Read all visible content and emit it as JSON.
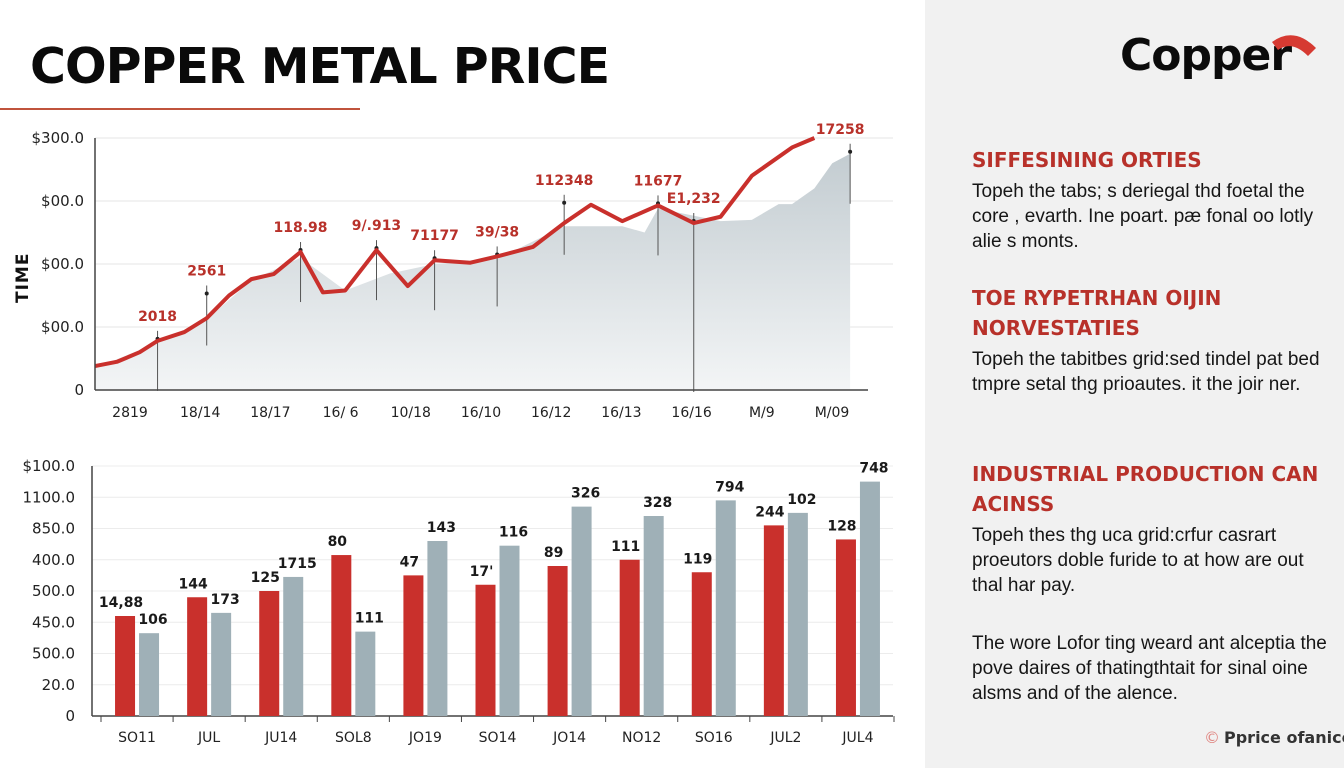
{
  "header": {
    "title": "COPPER METAL PRICE",
    "y_axis_side_label": "TIME"
  },
  "brand": {
    "logo_text": "Copper",
    "logo_icon": "copper-arc-icon",
    "accent_color": "#c9302c",
    "secondary_color": "#9fb0b7"
  },
  "sidebar": {
    "sections": [
      {
        "heading": "SIFFESINING ORTIES",
        "body": "Topeh the tabs; s deriegal thd foetal the core , evarth. Ine poart. pæ fonal oo lotly alie s monts."
      },
      {
        "heading": "TOE RYPETRHAN OIJIN NORVESTATIES",
        "body": "Topeh the tabitbes grid:sed tindel pat bed tmpre setal thg prioautes. it the joir ner."
      },
      {
        "heading": "INDUSTRIAL PRODUCTION CAN ACINSS",
        "body": "Topeh thes thg uca grid:crfur casrart proeutors doble furide to at how are out thal har pay."
      },
      {
        "heading": "",
        "body": "The wore Lofor ting weard ant alceptia the pove daires of thatingthtait for sinal oine alsms and of the alence."
      }
    ],
    "footer": {
      "icon": "copyright-icon",
      "symbol": "©",
      "text": "Pprice ofanice"
    }
  },
  "chart_data": [
    {
      "type": "area",
      "title": "COPPER METAL PRICE",
      "xlabel": "",
      "ylabel": "TIME",
      "y_tick_labels": [
        "0",
        "$00.0",
        "$00.0",
        "$00.0",
        "$300.0"
      ],
      "ylim": [
        0,
        4
      ],
      "grid": true,
      "x_tick_labels": [
        "2819",
        "18/14",
        "18/17",
        "16/ 6",
        "10/18",
        "16/10",
        "16/12",
        "16/13",
        "16/16",
        "M/9",
        "M/09"
      ],
      "series": [
        {
          "name": "price-line",
          "color": "#c9302c",
          "points": [
            [
              0,
              0.38
            ],
            [
              0.5,
              0.45
            ],
            [
              1,
              0.6
            ],
            [
              1.4,
              0.78
            ],
            [
              2,
              0.92
            ],
            [
              2.5,
              1.14
            ],
            [
              3,
              1.5
            ],
            [
              3.5,
              1.76
            ],
            [
              4,
              1.84
            ],
            [
              4.6,
              2.19
            ],
            [
              5.1,
              1.55
            ],
            [
              5.6,
              1.58
            ],
            [
              6.3,
              2.22
            ],
            [
              7,
              1.65
            ],
            [
              7.6,
              2.06
            ],
            [
              8.4,
              2.02
            ],
            [
              9,
              2.12
            ],
            [
              9.8,
              2.27
            ],
            [
              10.5,
              2.65
            ],
            [
              11.1,
              2.94
            ],
            [
              11.8,
              2.68
            ],
            [
              12.6,
              2.93
            ],
            [
              13.4,
              2.65
            ],
            [
              14,
              2.75
            ],
            [
              14.7,
              3.4
            ],
            [
              15.6,
              3.85
            ],
            [
              16.1,
              4.0
            ]
          ]
        },
        {
          "name": "shaded-area",
          "color": "#cfd7db",
          "points": [
            [
              0,
              0.35
            ],
            [
              1.4,
              0.75
            ],
            [
              2.5,
              1.12
            ],
            [
              3.5,
              1.74
            ],
            [
              4.6,
              2.1
            ],
            [
              5.6,
              1.58
            ],
            [
              6.6,
              1.85
            ],
            [
              7.6,
              2.0
            ],
            [
              9,
              2.08
            ],
            [
              10.5,
              2.6
            ],
            [
              11.8,
              2.6
            ],
            [
              12.3,
              2.5
            ],
            [
              12.6,
              2.88
            ],
            [
              14,
              2.68
            ],
            [
              14.7,
              2.7
            ],
            [
              15.3,
              2.95
            ],
            [
              15.6,
              2.95
            ],
            [
              16.1,
              3.2
            ],
            [
              16.5,
              3.6
            ],
            [
              16.9,
              3.75
            ]
          ]
        }
      ],
      "annotations": [
        {
          "text": "2018",
          "x": 1.4,
          "y": 0.78
        },
        {
          "text": "2561",
          "x": 2.5,
          "y": 1.5
        },
        {
          "text": "118.98",
          "x": 4.6,
          "y": 2.19
        },
        {
          "text": "9/.913",
          "x": 6.3,
          "y": 2.22
        },
        {
          "text": "71177",
          "x": 7.6,
          "y": 2.06
        },
        {
          "text": "39/38",
          "x": 9.0,
          "y": 2.12
        },
        {
          "text": "112348",
          "x": 10.5,
          "y": 2.94
        },
        {
          "text": "11677",
          "x": 12.6,
          "y": 2.93
        },
        {
          "text": "E1,232",
          "x": 13.4,
          "y": 2.65
        },
        {
          "text": "17258",
          "x": 16.9,
          "y": 3.75
        }
      ]
    },
    {
      "type": "bar",
      "title": "",
      "xlabel": "",
      "ylabel": "",
      "categories": [
        "SO11",
        "JUL",
        "JU14",
        "SOL8",
        "JO19",
        "SO14",
        "JO14",
        "NO12",
        "SO16",
        "JUL2",
        "JUL4"
      ],
      "y_tick_labels": [
        "0",
        "20.0",
        "500.0",
        "450.0",
        "500.0",
        "400.0",
        "850.0",
        "1100.0",
        "$100.0"
      ],
      "ylim": [
        0,
        8
      ],
      "grid": true,
      "series": [
        {
          "name": "red-series",
          "color": "#c9302c",
          "values": [
            3.2,
            3.8,
            4.0,
            5.15,
            4.5,
            4.2,
            4.8,
            5.0,
            4.6,
            6.1,
            5.65
          ],
          "labels": [
            "14,88",
            "144",
            "125",
            "80",
            "47",
            "17'",
            "89",
            "111",
            "119",
            "244",
            "128"
          ]
        },
        {
          "name": "gray-series",
          "color": "#9fb0b7",
          "values": [
            2.65,
            3.3,
            4.45,
            2.7,
            5.6,
            5.45,
            6.7,
            6.4,
            6.9,
            6.5,
            7.5
          ],
          "labels": [
            "106",
            "173",
            "1715",
            "111",
            "143",
            "116",
            "326",
            "328",
            "794",
            "102",
            "748"
          ]
        }
      ]
    }
  ]
}
